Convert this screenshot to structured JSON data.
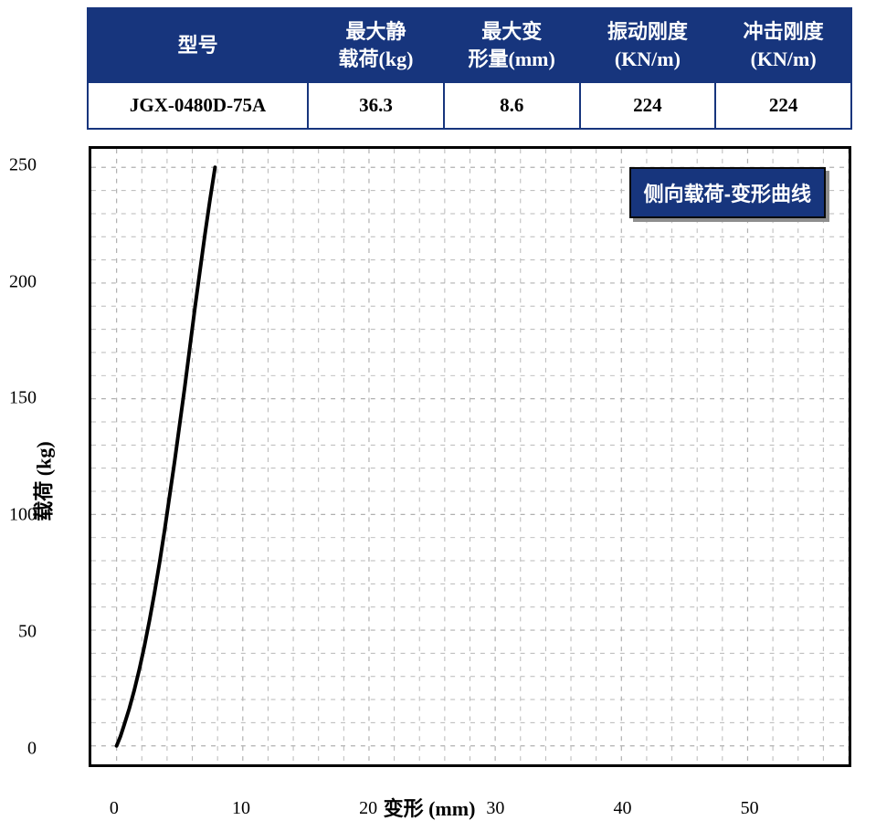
{
  "table": {
    "headers": [
      "型号",
      "最大静\n载荷(kg)",
      "最大变\n形量(mm)",
      "振动刚度\n(KN/m)",
      "冲击刚度\n(KN/m)"
    ],
    "row": [
      "JGX-0480D-75A",
      "36.3",
      "8.6",
      "224",
      "224"
    ]
  },
  "chart": {
    "type": "line",
    "legend_label": "侧向载荷-变形曲线",
    "xlabel": "变形 (mm)",
    "ylabel": "载荷 (kg)",
    "xlim": [
      -2,
      58
    ],
    "ylim": [
      -8,
      258
    ],
    "xticks": [
      0,
      10,
      20,
      30,
      40,
      50
    ],
    "yticks": [
      0,
      50,
      100,
      150,
      200,
      250
    ],
    "x_minor_step": 2,
    "y_minor_step": 10,
    "grid_color_major": "#b0b0b0",
    "grid_color_minor": "#b8b8b8",
    "major_line_width": 1.2,
    "minor_line_width": 1.0,
    "grid_dash": "5,6",
    "axis_color": "#000000",
    "axis_width": 3,
    "background_color": "#ffffff",
    "line_color": "#000000",
    "line_width": 4,
    "legend_bg": "#17357d",
    "legend_text_color": "#ffffff",
    "legend_shadow": "#8e8e8e",
    "data_points": [
      [
        0.0,
        0.0
      ],
      [
        0.3,
        4
      ],
      [
        0.6,
        9
      ],
      [
        1.0,
        16
      ],
      [
        1.4,
        24
      ],
      [
        1.8,
        33
      ],
      [
        2.2,
        43
      ],
      [
        2.6,
        54
      ],
      [
        3.0,
        66
      ],
      [
        3.4,
        79
      ],
      [
        3.8,
        93
      ],
      [
        4.2,
        108
      ],
      [
        4.6,
        123
      ],
      [
        5.0,
        139
      ],
      [
        5.4,
        155
      ],
      [
        5.8,
        172
      ],
      [
        6.2,
        189
      ],
      [
        6.6,
        205
      ],
      [
        7.0,
        221
      ],
      [
        7.4,
        236
      ],
      [
        7.8,
        250
      ]
    ]
  }
}
